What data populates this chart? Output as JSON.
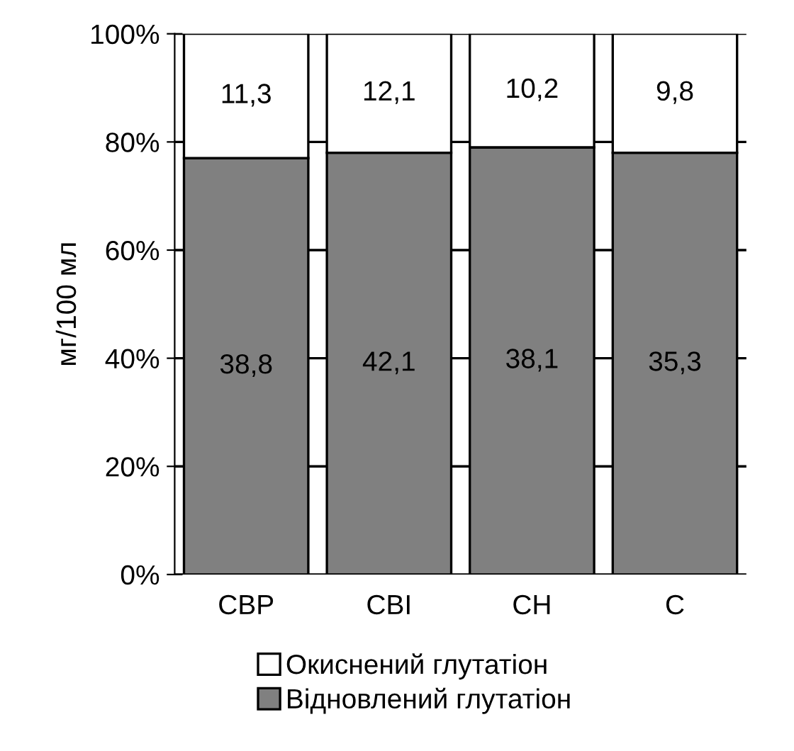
{
  "chart_data": {
    "type": "bar",
    "stacked": true,
    "ylabel": "мг/100 мл",
    "categories": [
      "СВР",
      "СВІ",
      "СН",
      "С"
    ],
    "series": [
      {
        "name": "Відновлений глутатіон",
        "color": "#808080",
        "values": [
          77,
          78,
          79,
          78
        ]
      },
      {
        "name": "Окиснений глутатіон",
        "color": "#ffffff",
        "values": [
          23,
          22,
          21,
          22
        ]
      }
    ],
    "annotations": [
      "38,8",
      "42,1",
      "38,1",
      "35,3",
      "11,3",
      "12,1",
      "10,2",
      "9,8"
    ],
    "ylim": [
      0,
      100
    ],
    "yticks": [
      {
        "value": 0,
        "label": "0%"
      },
      {
        "value": 20,
        "label": "20%"
      },
      {
        "value": 40,
        "label": "40%"
      },
      {
        "value": 60,
        "label": "60%"
      },
      {
        "value": 80,
        "label": "80%"
      },
      {
        "value": 100,
        "label": "100%"
      }
    ],
    "grid": "y",
    "legend": "bottom"
  }
}
